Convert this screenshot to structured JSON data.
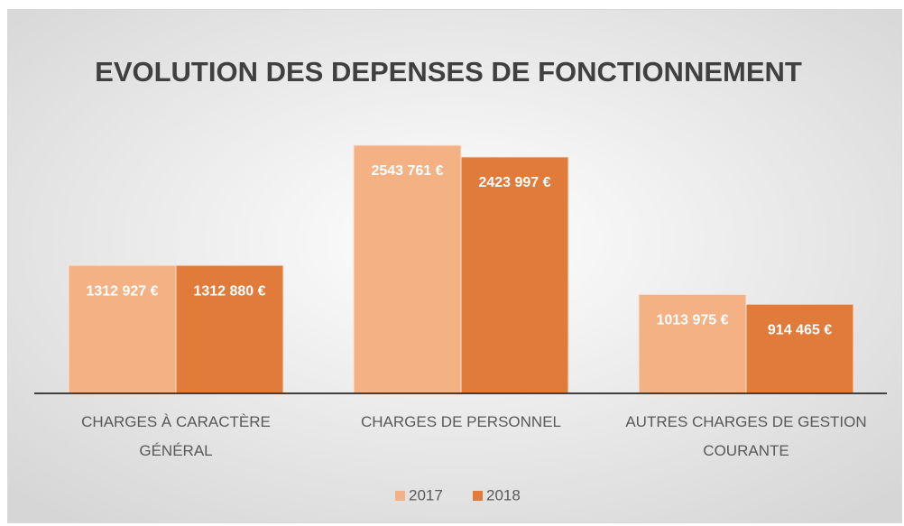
{
  "chart_data": {
    "type": "bar",
    "title": "EVOLUTION DES DEPENSES DE FONCTIONNEMENT",
    "categories": [
      "CHARGES À CARACTÈRE GÉNÉRAL",
      "CHARGES DE PERSONNEL",
      "AUTRES CHARGES DE GESTION COURANTE"
    ],
    "series": [
      {
        "name": "2017",
        "color": "#f4b183",
        "values": [
          1312927,
          2543761,
          1013975
        ],
        "value_labels": [
          "1312 927 €",
          "2543 761 €",
          "1013 975 €"
        ]
      },
      {
        "name": "2018",
        "color": "#e07b3a",
        "values": [
          1312880,
          2423997,
          914465
        ],
        "value_labels": [
          "1312 880 €",
          "2423 997 €",
          "914 465 €"
        ]
      }
    ],
    "legend": "bottom"
  }
}
